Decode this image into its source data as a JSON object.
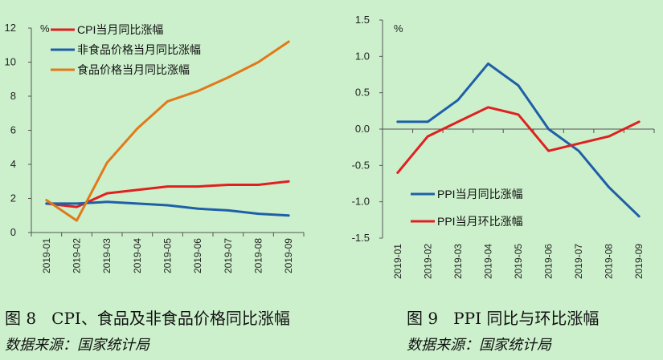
{
  "captions": {
    "fig8": "图 8   CPI、食品及非食品价格同比涨幅",
    "fig9": "图 9   PPI 同比与环比涨幅",
    "source8": "数据来源：国家统计局",
    "source9": "数据来源：国家统计局"
  },
  "chart_data": [
    {
      "type": "line",
      "unit_label": "%",
      "x": [
        "2019-01",
        "2019-02",
        "2019-03",
        "2019-04",
        "2019-05",
        "2019-06",
        "2019-07",
        "2019-08",
        "2019-09"
      ],
      "ylim": [
        0,
        12
      ],
      "yticks": [
        0,
        2,
        4,
        6,
        8,
        10,
        12
      ],
      "grid": false,
      "legend": "top-left",
      "series": [
        {
          "name": "CPI当月同比涨幅",
          "color": "#e02020",
          "values": [
            1.7,
            1.5,
            2.3,
            2.5,
            2.7,
            2.7,
            2.8,
            2.8,
            3.0
          ]
        },
        {
          "name": "非食品价格当月同比涨幅",
          "color": "#1f5fa8",
          "values": [
            1.7,
            1.7,
            1.8,
            1.7,
            1.6,
            1.4,
            1.3,
            1.1,
            1.0
          ]
        },
        {
          "name": "食品价格当月同比涨幅",
          "color": "#e07a1a",
          "values": [
            1.9,
            0.7,
            4.1,
            6.1,
            7.7,
            8.3,
            9.1,
            10.0,
            11.2
          ]
        }
      ]
    },
    {
      "type": "line",
      "unit_label": "%",
      "x": [
        "2019-01",
        "2019-02",
        "2019-03",
        "2019-04",
        "2019-05",
        "2019-06",
        "2019-07",
        "2019-08",
        "2019-09"
      ],
      "ylim": [
        -1.5,
        1.5
      ],
      "yticks": [
        "1.5",
        "1.0",
        "0.5",
        "0.0",
        "-0.5",
        "-1.0",
        "-1.5"
      ],
      "grid": false,
      "legend": "bottom-left",
      "series": [
        {
          "name": "PPI当月同比涨幅",
          "color": "#1f5fa8",
          "values": [
            0.1,
            0.1,
            0.4,
            0.9,
            0.6,
            0.0,
            -0.3,
            -0.8,
            -1.2
          ]
        },
        {
          "name": "PPI当月环比涨幅",
          "color": "#e02020",
          "values": [
            -0.6,
            -0.1,
            0.1,
            0.3,
            0.2,
            -0.3,
            -0.2,
            -0.1,
            0.1
          ]
        }
      ]
    }
  ]
}
